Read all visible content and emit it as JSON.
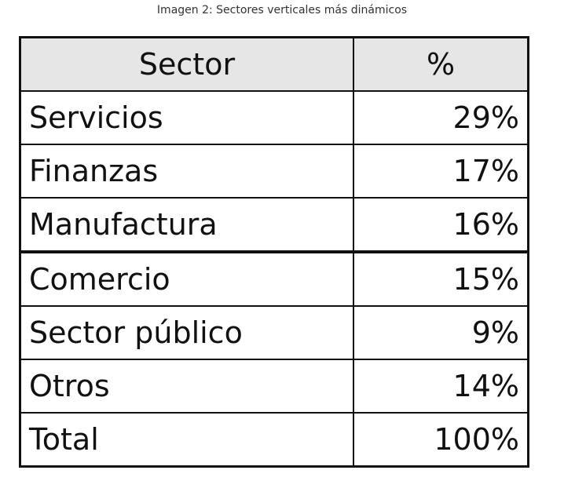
{
  "caption": "Imagen 2: Sectores verticales más dinámicos",
  "table": {
    "header": [
      "Sector",
      "%"
    ],
    "rows": [
      [
        "Servicios",
        "29%"
      ],
      [
        "Finanzas",
        "17%"
      ],
      [
        "Manufactura",
        "16%"
      ],
      [
        "Comercio",
        "15%"
      ],
      [
        "Sector público",
        "9%"
      ],
      [
        "Otros",
        "14%"
      ],
      [
        "Total",
        "100%"
      ]
    ]
  }
}
